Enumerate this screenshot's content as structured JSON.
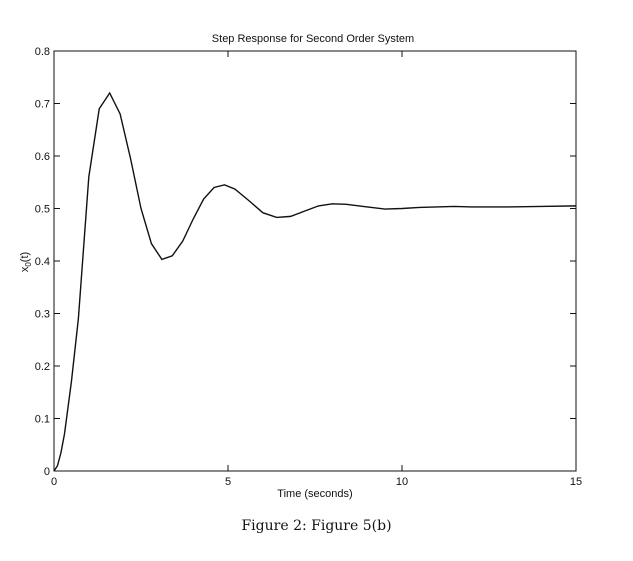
{
  "caption": "Figure 2: Figure 5(b)",
  "chart_data": {
    "type": "line",
    "title": "Step Response for Second Order System",
    "xlabel": "Time  (seconds)",
    "ylabel_main": "x",
    "ylabel_sub": "0",
    "ylabel_suffix": "(t)",
    "xlim": [
      0,
      15
    ],
    "ylim": [
      0,
      0.8
    ],
    "xticks": [
      0,
      5,
      10,
      15
    ],
    "xtick_labels": [
      "0",
      "5",
      "10",
      "15"
    ],
    "yticks": [
      0,
      0.1,
      0.2,
      0.3,
      0.4,
      0.5,
      0.6,
      0.7,
      0.8
    ],
    "ytick_labels": [
      "0",
      "0.1",
      "0.2",
      "0.3",
      "0.4",
      "0.5",
      "0.6",
      "0.7",
      "0.8"
    ],
    "grid": false,
    "line_color": "#111111",
    "series": [
      {
        "x": [
          0,
          0.1,
          0.2,
          0.3,
          0.5,
          0.7,
          1.0,
          1.3,
          1.6,
          1.9,
          2.2,
          2.5,
          2.8,
          3.1,
          3.4,
          3.7,
          4.0,
          4.3,
          4.6,
          4.9,
          5.2,
          5.6,
          6.0,
          6.4,
          6.8,
          7.2,
          7.6,
          8.0,
          8.4,
          9.0,
          9.5,
          10.0,
          10.5,
          11.0,
          11.5,
          12.0,
          13.0,
          14.0,
          15.0
        ],
        "y": [
          0,
          0.01,
          0.035,
          0.07,
          0.17,
          0.29,
          0.56,
          0.69,
          0.72,
          0.68,
          0.595,
          0.5,
          0.433,
          0.403,
          0.41,
          0.438,
          0.48,
          0.518,
          0.54,
          0.545,
          0.537,
          0.515,
          0.492,
          0.483,
          0.485,
          0.495,
          0.505,
          0.509,
          0.508,
          0.503,
          0.499,
          0.5,
          0.502,
          0.503,
          0.504,
          0.503,
          0.503,
          0.504,
          0.505
        ]
      }
    ]
  }
}
